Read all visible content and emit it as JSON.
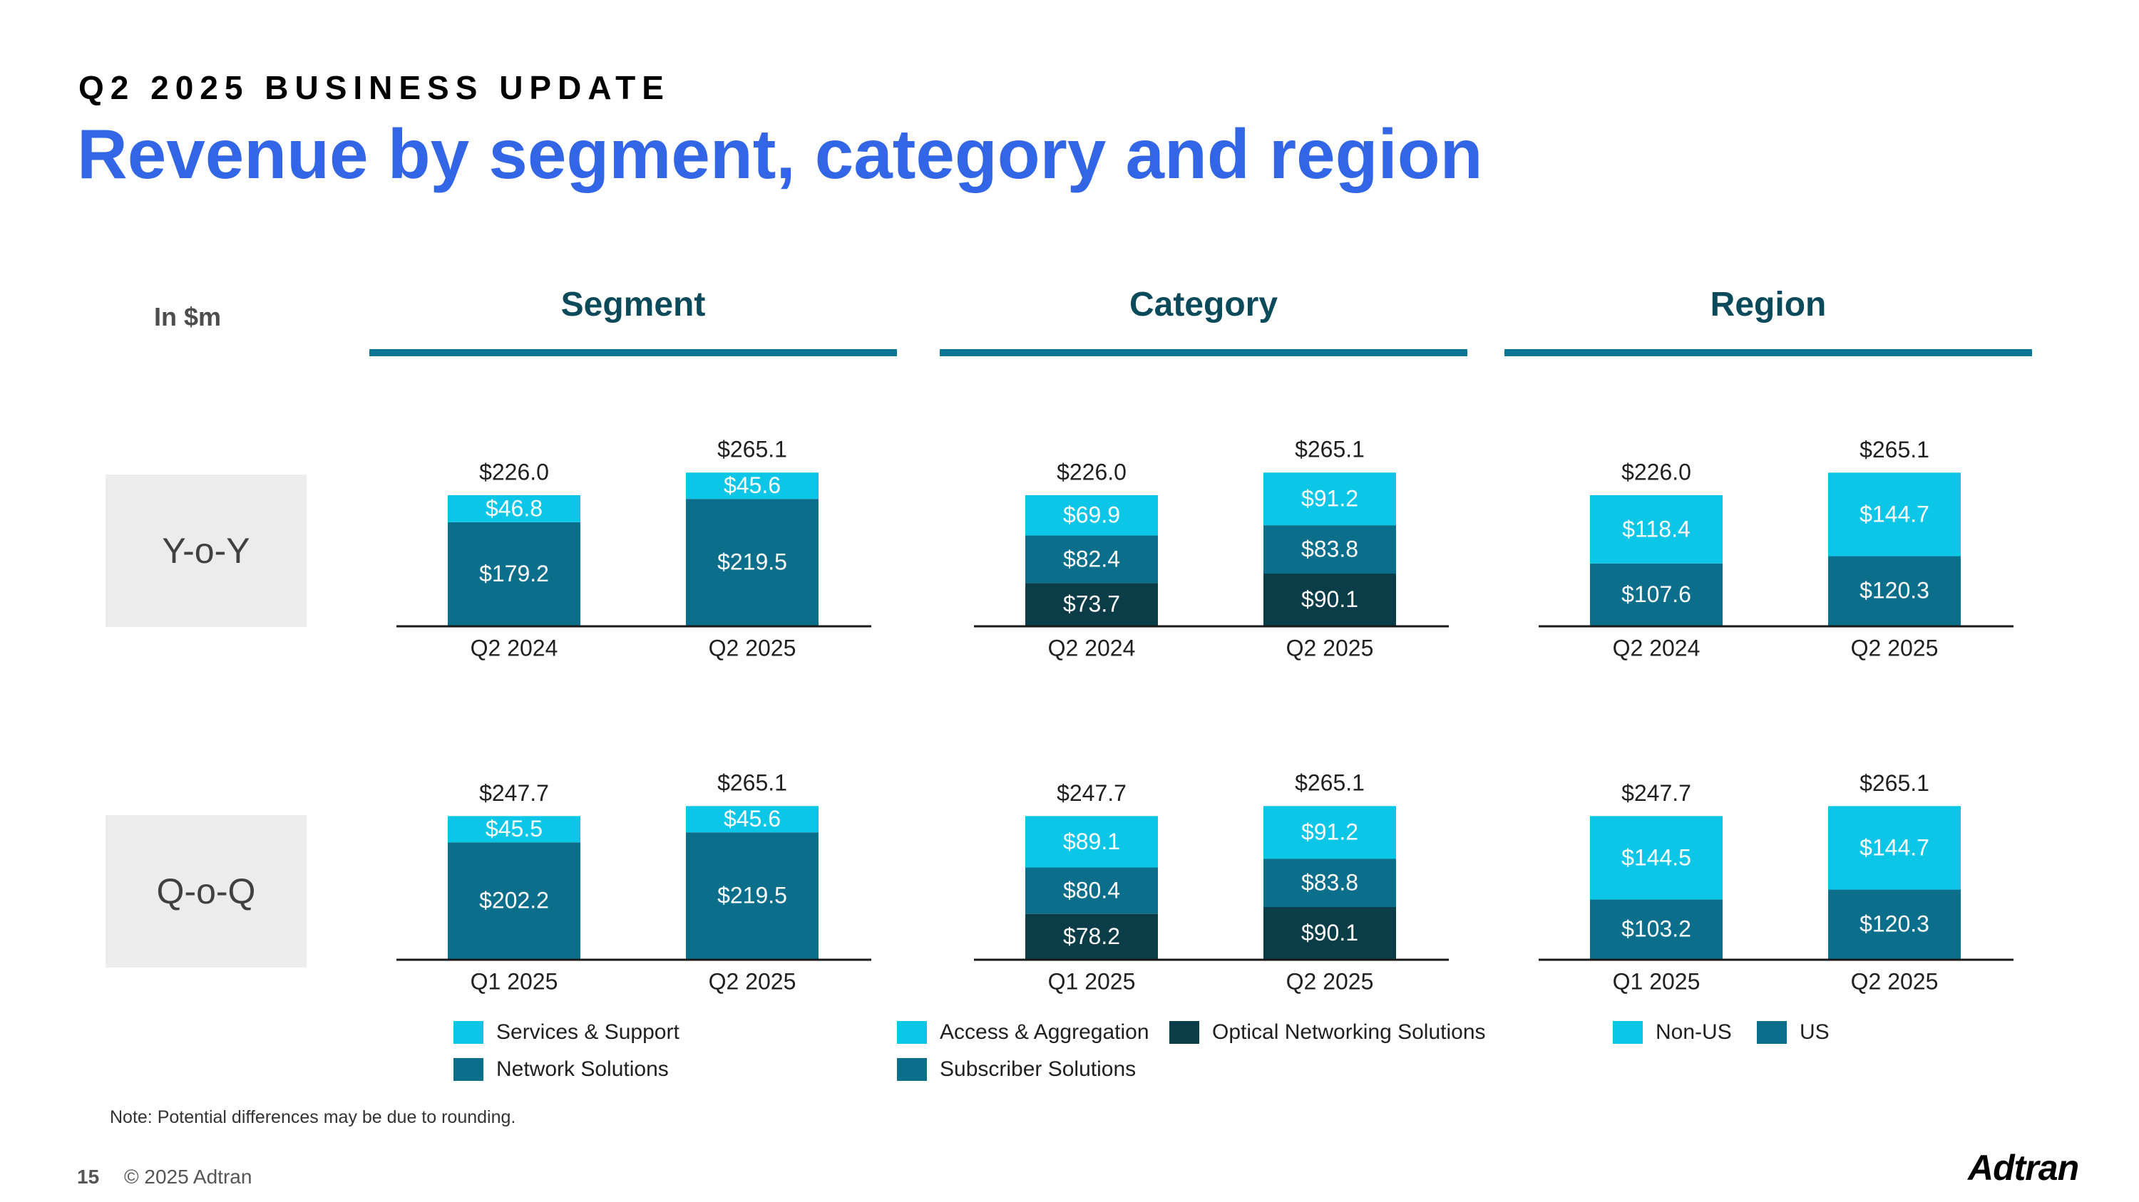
{
  "header": {
    "kicker": "Q2 2025 BUSINESS UPDATE",
    "title": "Revenue by segment, category and region",
    "unit_label": "In $m"
  },
  "columns": [
    "Segment",
    "Category",
    "Region"
  ],
  "rows": [
    "Y-o-Y",
    "Q-o-Q"
  ],
  "colors": {
    "light": "#0cc6e8",
    "mid": "#0b6f8c",
    "dark": "#0a3d47",
    "title_blue": "#3366e6",
    "rule": "#097594"
  },
  "chart_data": [
    {
      "type": "bar",
      "stacked": true,
      "section": "Segment",
      "row": "Y-o-Y",
      "categories": [
        "Q2 2024",
        "Q2 2025"
      ],
      "totals": [
        "$226.0",
        "$265.1"
      ],
      "series": [
        {
          "name": "Network Solutions",
          "color": "mid",
          "values": [
            179.2,
            219.5
          ],
          "labels": [
            "$179.2",
            "$219.5"
          ]
        },
        {
          "name": "Services & Support",
          "color": "light",
          "values": [
            46.8,
            45.6
          ],
          "labels": [
            "$46.8",
            "$45.6"
          ]
        }
      ]
    },
    {
      "type": "bar",
      "stacked": true,
      "section": "Category",
      "row": "Y-o-Y",
      "categories": [
        "Q2 2024",
        "Q2 2025"
      ],
      "totals": [
        "$226.0",
        "$265.1"
      ],
      "series": [
        {
          "name": "Optical Networking Solutions",
          "color": "dark",
          "values": [
            73.7,
            90.1
          ],
          "labels": [
            "$73.7",
            "$90.1"
          ]
        },
        {
          "name": "Subscriber Solutions",
          "color": "mid",
          "values": [
            82.4,
            83.8
          ],
          "labels": [
            "$82.4",
            "$83.8"
          ]
        },
        {
          "name": "Access & Aggregation",
          "color": "light",
          "values": [
            69.9,
            91.2
          ],
          "labels": [
            "$69.9",
            "$91.2"
          ]
        }
      ]
    },
    {
      "type": "bar",
      "stacked": true,
      "section": "Region",
      "row": "Y-o-Y",
      "categories": [
        "Q2 2024",
        "Q2 2025"
      ],
      "totals": [
        "$226.0",
        "$265.1"
      ],
      "series": [
        {
          "name": "US",
          "color": "mid",
          "values": [
            107.6,
            120.3
          ],
          "labels": [
            "$107.6",
            "$120.3"
          ]
        },
        {
          "name": "Non-US",
          "color": "light",
          "values": [
            118.4,
            144.7
          ],
          "labels": [
            "$118.4",
            "$144.7"
          ]
        }
      ]
    },
    {
      "type": "bar",
      "stacked": true,
      "section": "Segment",
      "row": "Q-o-Q",
      "categories": [
        "Q1 2025",
        "Q2 2025"
      ],
      "totals": [
        "$247.7",
        "$265.1"
      ],
      "series": [
        {
          "name": "Network Solutions",
          "color": "mid",
          "values": [
            202.2,
            219.5
          ],
          "labels": [
            "$202.2",
            "$219.5"
          ]
        },
        {
          "name": "Services & Support",
          "color": "light",
          "values": [
            45.5,
            45.6
          ],
          "labels": [
            "$45.5",
            "$45.6"
          ]
        }
      ]
    },
    {
      "type": "bar",
      "stacked": true,
      "section": "Category",
      "row": "Q-o-Q",
      "categories": [
        "Q1 2025",
        "Q2 2025"
      ],
      "totals": [
        "$247.7",
        "$265.1"
      ],
      "series": [
        {
          "name": "Optical Networking Solutions",
          "color": "dark",
          "values": [
            78.2,
            90.1
          ],
          "labels": [
            "$78.2",
            "$90.1"
          ]
        },
        {
          "name": "Subscriber Solutions",
          "color": "mid",
          "values": [
            80.4,
            83.8
          ],
          "labels": [
            "$80.4",
            "$83.8"
          ]
        },
        {
          "name": "Access & Aggregation",
          "color": "light",
          "values": [
            89.1,
            91.2
          ],
          "labels": [
            "$89.1",
            "$91.2"
          ]
        }
      ]
    },
    {
      "type": "bar",
      "stacked": true,
      "section": "Region",
      "row": "Q-o-Q",
      "categories": [
        "Q1 2025",
        "Q2 2025"
      ],
      "totals": [
        "$247.7",
        "$265.1"
      ],
      "series": [
        {
          "name": "US",
          "color": "mid",
          "values": [
            103.2,
            120.3
          ],
          "labels": [
            "$103.2",
            "$120.3"
          ]
        },
        {
          "name": "Non-US",
          "color": "light",
          "values": [
            144.5,
            144.7
          ],
          "labels": [
            "$144.5",
            "$144.7"
          ]
        }
      ]
    }
  ],
  "legends": {
    "segment": [
      "Services & Support",
      "Network Solutions"
    ],
    "category": [
      "Access & Aggregation",
      "Optical Networking Solutions",
      "Subscriber Solutions"
    ],
    "region": [
      "Non-US",
      "US"
    ]
  },
  "footer": {
    "note": "Note: Potential differences may be due to rounding.",
    "page": "15",
    "copyright": "© 2025 Adtran",
    "logo": "Adtran"
  }
}
